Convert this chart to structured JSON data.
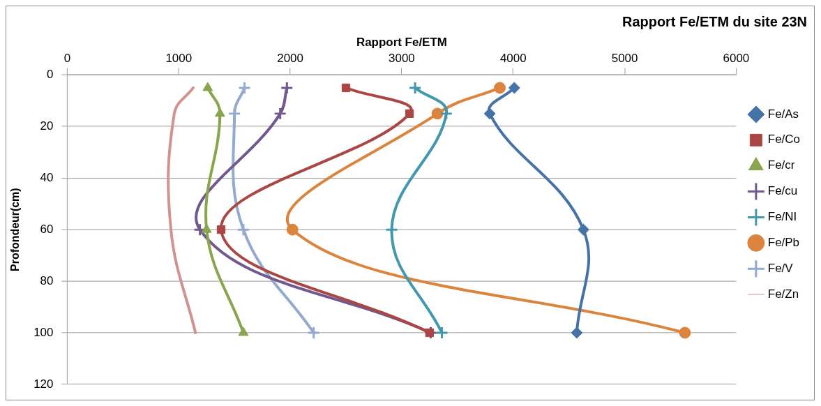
{
  "chart_data": {
    "type": "line",
    "title": "Rapport Fe/ETM du site 23N",
    "xlabel": "Rapport Fe/ETM",
    "ylabel": "Profondeur(cm)",
    "orientation": "horizontal",
    "x": [
      5,
      15,
      60,
      100
    ],
    "xlim": [
      0,
      6000
    ],
    "xticks": [
      0,
      1000,
      2000,
      3000,
      4000,
      5000,
      6000
    ],
    "ylim": [
      120,
      0
    ],
    "yticks": [
      0,
      20,
      40,
      60,
      80,
      100,
      120
    ],
    "grid": "y",
    "legend": "right",
    "line_style": "solid",
    "series": [
      {
        "name": "Fe/As",
        "color": "#4572a7",
        "marker": "diamond",
        "values": [
          4010,
          3790,
          4630,
          4570
        ]
      },
      {
        "name": "Fe/Co",
        "color": "#aa4643",
        "marker": "square",
        "values": [
          2500,
          3070,
          1380,
          3250
        ]
      },
      {
        "name": "Fe/cr",
        "color": "#89a54e",
        "marker": "triangle",
        "values": [
          1260,
          1370,
          1250,
          1580
        ]
      },
      {
        "name": "Fe/cu",
        "color": "#71588f",
        "marker": "cross",
        "values": [
          1970,
          1910,
          1190,
          3260
        ]
      },
      {
        "name": "Fe/NI",
        "color": "#4198af",
        "marker": "cross",
        "values": [
          3120,
          3400,
          2910,
          3360
        ]
      },
      {
        "name": "Fe/Pb",
        "color": "#db843d",
        "marker": "circle",
        "values": [
          3880,
          3320,
          2020,
          5540
        ]
      },
      {
        "name": "Fe/V",
        "color": "#93a9cf",
        "marker": "cross",
        "values": [
          1590,
          1500,
          1580,
          2210
        ]
      },
      {
        "name": "Fe/Zn",
        "color": "#d19392",
        "marker": "none",
        "values": [
          1130,
          960,
          930,
          1150
        ]
      }
    ]
  }
}
